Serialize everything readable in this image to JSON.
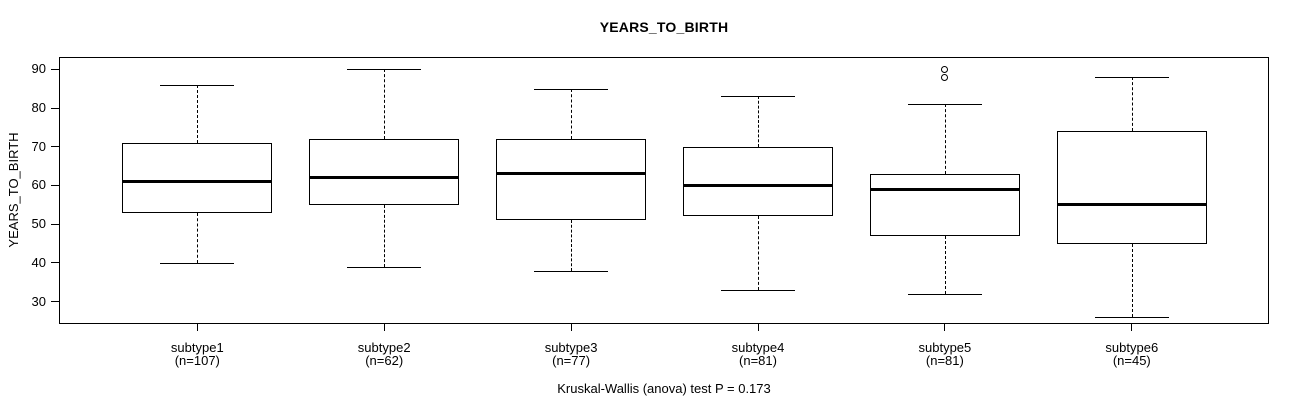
{
  "figure": {
    "title": "YEARS_TO_BIRTH",
    "y_axis_label": "YEARS_TO_BIRTH",
    "caption": "Kruskal-Wallis (anova) test P = 0.173"
  },
  "chart_data": {
    "type": "boxplot",
    "title": "YEARS_TO_BIRTH",
    "ylabel": "YEARS_TO_BIRTH",
    "xlabel": "",
    "yticks": [
      30,
      40,
      50,
      60,
      70,
      80,
      90
    ],
    "ylim": [
      23,
      93
    ],
    "grid": false,
    "legend": "none",
    "caption": "Kruskal-Wallis (anova) test P = 0.173",
    "categories": [
      "subtype1",
      "subtype2",
      "subtype3",
      "subtype4",
      "subtype5",
      "subtype6"
    ],
    "group_sizes": [
      107,
      62,
      77,
      81,
      81,
      45
    ],
    "size_labels": [
      "(n=107)",
      "(n=62)",
      "(n=77)",
      "(n=81)",
      "(n=81)",
      "(n=45)"
    ],
    "boxes": [
      {
        "category": "subtype1",
        "n": 107,
        "lower_whisker": 40,
        "q1": 53,
        "median": 61,
        "q3": 71,
        "upper_whisker": 86,
        "outliers": []
      },
      {
        "category": "subtype2",
        "n": 62,
        "lower_whisker": 39,
        "q1": 55,
        "median": 62,
        "q3": 72,
        "upper_whisker": 90,
        "outliers": []
      },
      {
        "category": "subtype3",
        "n": 77,
        "lower_whisker": 38,
        "q1": 51,
        "median": 63,
        "q3": 72,
        "upper_whisker": 85,
        "outliers": []
      },
      {
        "category": "subtype4",
        "n": 81,
        "lower_whisker": 33,
        "q1": 52,
        "median": 60,
        "q3": 70,
        "upper_whisker": 83,
        "outliers": []
      },
      {
        "category": "subtype5",
        "n": 81,
        "lower_whisker": 32,
        "q1": 47,
        "median": 59,
        "q3": 63,
        "upper_whisker": 81,
        "outliers": [
          88,
          90
        ]
      },
      {
        "category": "subtype6",
        "n": 45,
        "lower_whisker": 26,
        "q1": 45,
        "median": 55,
        "q3": 74,
        "upper_whisker": 88,
        "outliers": []
      }
    ],
    "colors": {
      "line": "#000000",
      "box_fill": "#ffffff",
      "background": "#ffffff"
    }
  }
}
